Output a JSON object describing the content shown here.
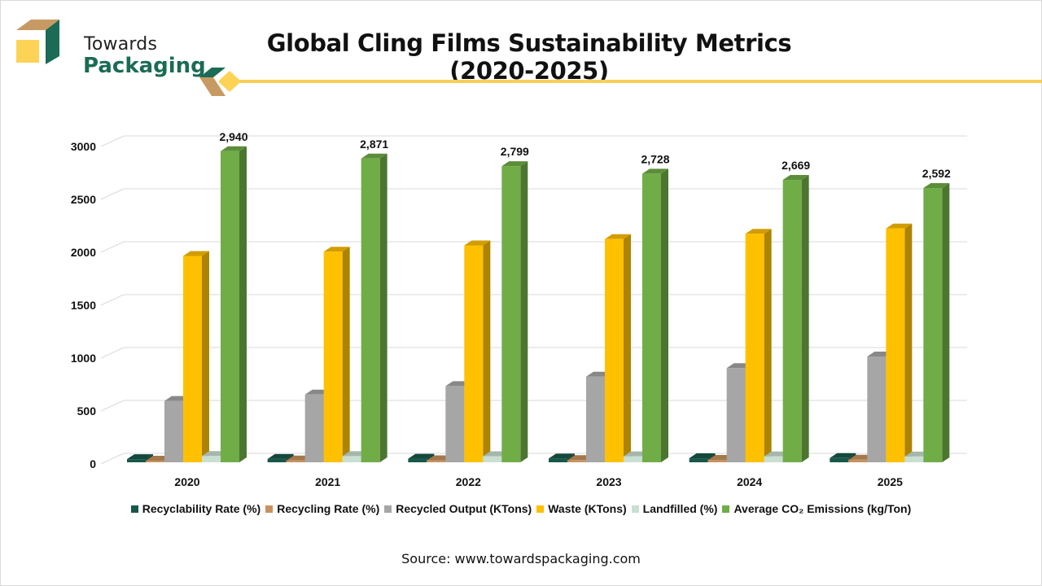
{
  "brand": {
    "line1": "Towards",
    "line2": "Packaging",
    "colors": {
      "green": "#1b6b55",
      "tan": "#c89a63",
      "yellow": "#fdd356"
    }
  },
  "source_text": "Source: www.towardspackaging.com",
  "chart_data": {
    "type": "bar",
    "title": "Global Cling Films Sustainability Metrics (2020-2025)",
    "xlabel": "",
    "ylabel": "",
    "ylim": [
      0,
      3000
    ],
    "yticks": [
      0,
      500,
      1000,
      1500,
      2000,
      2500,
      3000
    ],
    "grid": true,
    "legend_position": "bottom",
    "categories": [
      "2020",
      "2021",
      "2022",
      "2023",
      "2024",
      "2025"
    ],
    "series": [
      {
        "name": "Recyclability Rate (%)",
        "color": "#17584a",
        "values": [
          30,
          32,
          34,
          36,
          38,
          40
        ]
      },
      {
        "name": "Recycling Rate (%)",
        "color": "#c8925e",
        "values": [
          15,
          17,
          19,
          21,
          23,
          25
        ]
      },
      {
        "name": "Recycled Output (KTons)",
        "color": "#a6a6a6",
        "values": [
          580,
          640,
          720,
          810,
          890,
          1000
        ]
      },
      {
        "name": "Waste (KTons)",
        "color": "#ffc000",
        "values": [
          1950,
          1990,
          2050,
          2110,
          2160,
          2210
        ]
      },
      {
        "name": "Landfilled (%)",
        "color": "#c9dfd2",
        "values": [
          60,
          59,
          58,
          57,
          56,
          55
        ]
      },
      {
        "name": "Average CO₂ Emissions (kg/Ton)",
        "color": "#70ad47",
        "values": [
          2940,
          2871,
          2799,
          2728,
          2669,
          2592
        ]
      }
    ],
    "data_labels": {
      "series": "Average CO₂ Emissions (kg/Ton)",
      "labels": [
        "2,940",
        "2,871",
        "2,799",
        "2,728",
        "2,669",
        "2,592"
      ]
    }
  }
}
